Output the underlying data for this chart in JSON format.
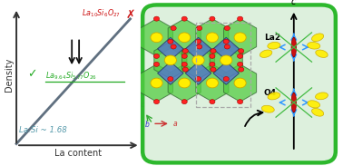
{
  "fig_width": 3.78,
  "fig_height": 1.83,
  "dpi": 100,
  "bg_color": "#ffffff",
  "border_color": "#2db82d",
  "line_color": "#607080",
  "formula_bad": "La$_{10}$Si$_6$O$_{27}$",
  "formula_good": "La$_{9.64}$Si$_{5.77}$O$_{26}$",
  "ratio_label": "La:Si ~ 1.68",
  "xlabel": "La content",
  "ylabel": "Density",
  "cross_color": "#cc1111",
  "check_color": "#22aa22",
  "formula_bad_color": "#cc1111",
  "formula_good_color": "#22aa22",
  "ratio_color": "#5599aa",
  "arrow_color": "#111111",
  "axis_color": "#333333",
  "text_color": "#333333",
  "green_poly": "#55cc44",
  "blue_poly": "#5577cc",
  "yellow_atom": "#ffee00",
  "red_atom": "#ff2222",
  "La2_label": "La2",
  "O4_label": "O4",
  "c_label": "c",
  "blue_arrow": "#3399ff",
  "green_line": "#44bb44",
  "red_bar": "#cc1111"
}
